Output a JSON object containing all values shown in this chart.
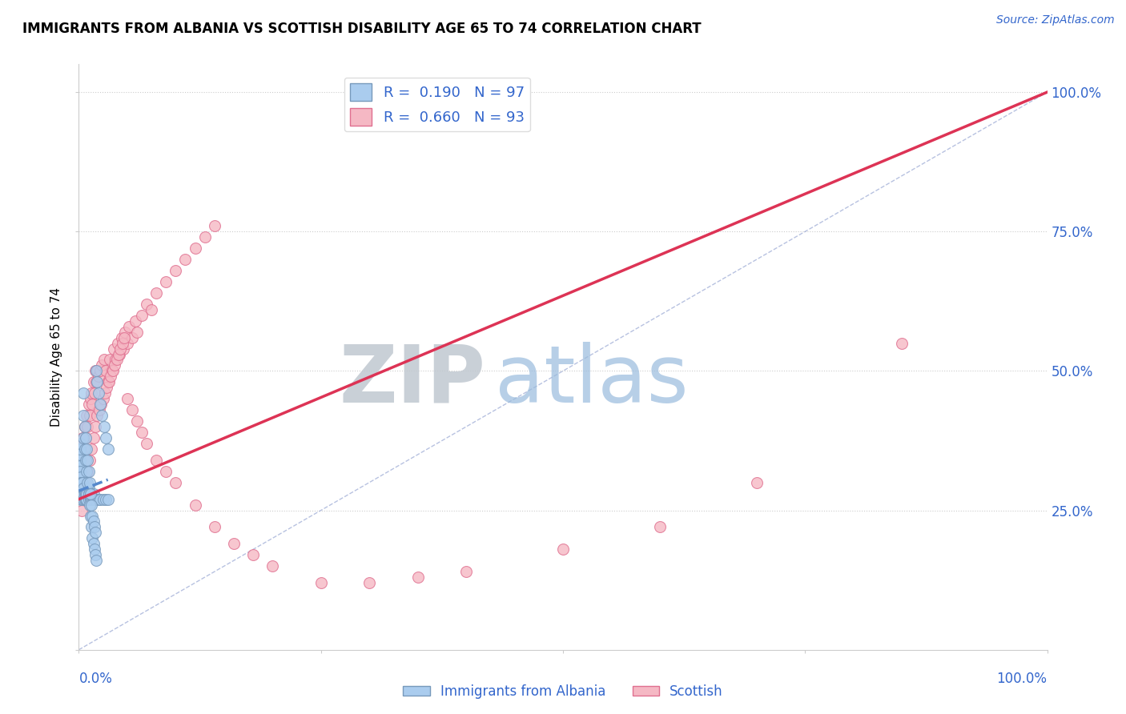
{
  "title": "IMMIGRANTS FROM ALBANIA VS SCOTTISH DISABILITY AGE 65 TO 74 CORRELATION CHART",
  "source": "Source: ZipAtlas.com",
  "ylabel": "Disability Age 65 to 74",
  "r_blue": 0.19,
  "n_blue": 97,
  "r_pink": 0.66,
  "n_pink": 93,
  "blue_color": "#aaccee",
  "pink_color": "#f5b8c4",
  "blue_edge": "#7799bb",
  "pink_edge": "#e07090",
  "watermark_zip": "ZIP",
  "watermark_atlas": "atlas",
  "grid_color": "#cccccc",
  "ref_line_color": "#8899cc",
  "blue_reg_color": "#5588cc",
  "pink_reg_color": "#dd3355",
  "title_fontsize": 12,
  "axis_label_color": "#3366cc",
  "legend_r_color": "#3366cc",
  "blue_scatter_x": [
    0.0005,
    0.0005,
    0.0005,
    0.0005,
    0.0008,
    0.0008,
    0.0008,
    0.001,
    0.001,
    0.001,
    0.001,
    0.001,
    0.001,
    0.001,
    0.001,
    0.001,
    0.001,
    0.0012,
    0.0012,
    0.0012,
    0.0015,
    0.0015,
    0.0015,
    0.002,
    0.002,
    0.002,
    0.002,
    0.002,
    0.0025,
    0.0025,
    0.003,
    0.003,
    0.003,
    0.003,
    0.004,
    0.004,
    0.004,
    0.005,
    0.005,
    0.005,
    0.006,
    0.006,
    0.007,
    0.007,
    0.008,
    0.008,
    0.01,
    0.01,
    0.01,
    0.012,
    0.012,
    0.013,
    0.015,
    0.015,
    0.016,
    0.018,
    0.02,
    0.022,
    0.025,
    0.028,
    0.03,
    0.005,
    0.005,
    0.005,
    0.006,
    0.006,
    0.007,
    0.007,
    0.008,
    0.008,
    0.009,
    0.009,
    0.01,
    0.01,
    0.011,
    0.011,
    0.012,
    0.012,
    0.013,
    0.013,
    0.014,
    0.014,
    0.015,
    0.015,
    0.016,
    0.016,
    0.017,
    0.017,
    0.018,
    0.018,
    0.019,
    0.02,
    0.022,
    0.024,
    0.026,
    0.028,
    0.03
  ],
  "blue_scatter_y": [
    0.3,
    0.32,
    0.34,
    0.36,
    0.31,
    0.33,
    0.35,
    0.28,
    0.29,
    0.3,
    0.31,
    0.32,
    0.33,
    0.34,
    0.35,
    0.36,
    0.37,
    0.29,
    0.31,
    0.33,
    0.28,
    0.3,
    0.32,
    0.27,
    0.28,
    0.29,
    0.3,
    0.31,
    0.28,
    0.3,
    0.27,
    0.28,
    0.29,
    0.3,
    0.28,
    0.29,
    0.3,
    0.27,
    0.28,
    0.29,
    0.27,
    0.28,
    0.27,
    0.28,
    0.27,
    0.28,
    0.27,
    0.28,
    0.29,
    0.27,
    0.28,
    0.27,
    0.27,
    0.28,
    0.27,
    0.27,
    0.27,
    0.27,
    0.27,
    0.27,
    0.27,
    0.38,
    0.42,
    0.46,
    0.36,
    0.4,
    0.34,
    0.38,
    0.32,
    0.36,
    0.3,
    0.34,
    0.28,
    0.32,
    0.26,
    0.3,
    0.24,
    0.28,
    0.22,
    0.26,
    0.2,
    0.24,
    0.19,
    0.23,
    0.18,
    0.22,
    0.17,
    0.21,
    0.16,
    0.5,
    0.48,
    0.46,
    0.44,
    0.42,
    0.4,
    0.38,
    0.36
  ],
  "pink_scatter_x": [
    0.001,
    0.002,
    0.003,
    0.004,
    0.005,
    0.006,
    0.007,
    0.008,
    0.009,
    0.01,
    0.011,
    0.012,
    0.013,
    0.014,
    0.015,
    0.016,
    0.017,
    0.018,
    0.019,
    0.02,
    0.022,
    0.024,
    0.026,
    0.028,
    0.03,
    0.032,
    0.034,
    0.036,
    0.038,
    0.04,
    0.042,
    0.044,
    0.046,
    0.048,
    0.05,
    0.052,
    0.055,
    0.058,
    0.06,
    0.065,
    0.07,
    0.075,
    0.08,
    0.09,
    0.1,
    0.11,
    0.12,
    0.13,
    0.14,
    0.003,
    0.005,
    0.007,
    0.009,
    0.011,
    0.013,
    0.015,
    0.017,
    0.019,
    0.021,
    0.023,
    0.025,
    0.027,
    0.029,
    0.031,
    0.033,
    0.035,
    0.037,
    0.039,
    0.041,
    0.043,
    0.045,
    0.047,
    0.05,
    0.055,
    0.06,
    0.065,
    0.07,
    0.08,
    0.09,
    0.1,
    0.12,
    0.14,
    0.16,
    0.18,
    0.2,
    0.25,
    0.3,
    0.35,
    0.4,
    0.5,
    0.6,
    0.7,
    0.85
  ],
  "pink_scatter_y": [
    0.3,
    0.35,
    0.32,
    0.38,
    0.36,
    0.4,
    0.38,
    0.42,
    0.4,
    0.44,
    0.42,
    0.45,
    0.46,
    0.44,
    0.48,
    0.46,
    0.5,
    0.48,
    0.5,
    0.49,
    0.5,
    0.51,
    0.52,
    0.5,
    0.48,
    0.52,
    0.5,
    0.54,
    0.52,
    0.55,
    0.53,
    0.56,
    0.54,
    0.57,
    0.55,
    0.58,
    0.56,
    0.59,
    0.57,
    0.6,
    0.62,
    0.61,
    0.64,
    0.66,
    0.68,
    0.7,
    0.72,
    0.74,
    0.76,
    0.25,
    0.28,
    0.3,
    0.32,
    0.34,
    0.36,
    0.38,
    0.4,
    0.42,
    0.43,
    0.44,
    0.45,
    0.46,
    0.47,
    0.48,
    0.49,
    0.5,
    0.51,
    0.52,
    0.53,
    0.54,
    0.55,
    0.56,
    0.45,
    0.43,
    0.41,
    0.39,
    0.37,
    0.34,
    0.32,
    0.3,
    0.26,
    0.22,
    0.19,
    0.17,
    0.15,
    0.12,
    0.12,
    0.13,
    0.14,
    0.18,
    0.22,
    0.3,
    0.55
  ]
}
